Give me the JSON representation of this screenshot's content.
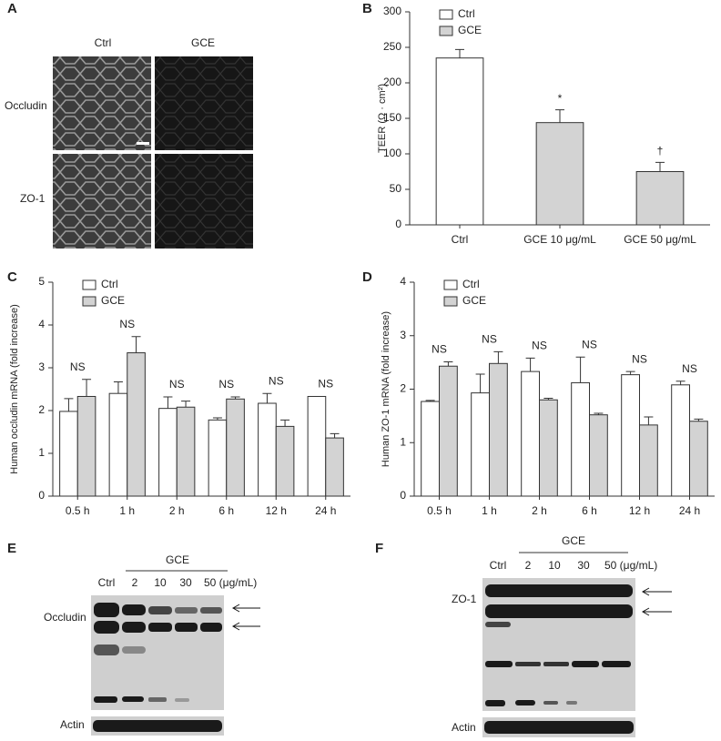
{
  "panel_labels": [
    "A",
    "B",
    "C",
    "D",
    "E",
    "F"
  ],
  "figure_a": {
    "columns": [
      "Ctrl",
      "GCE"
    ],
    "rows": [
      "Occludin",
      "ZO-1"
    ]
  },
  "blot_e": {
    "group": "GCE",
    "lanes": [
      "Ctrl",
      "2",
      "10",
      "30",
      "50 (μg/mL)"
    ],
    "bands": [
      "Occludin",
      "Actin"
    ]
  },
  "blot_f": {
    "group": "GCE",
    "lanes": [
      "Ctrl",
      "2",
      "10",
      "30",
      "50 (μg/mL)"
    ],
    "bands": [
      "ZO-1",
      "Actin"
    ]
  },
  "chart_data": [
    {
      "type": "bar",
      "y_label": "TEER (Ω · cm²)",
      "categories": [
        "Ctrl",
        "GCE 10 μg/mL",
        "GCE 50 μg/mL"
      ],
      "series": [
        {
          "name": "Ctrl",
          "color": "#ffffff",
          "values": [
            235,
            null,
            null
          ],
          "errors": [
            12,
            null,
            null
          ]
        },
        {
          "name": "GCE",
          "color": "#d3d3d3",
          "values": [
            null,
            144,
            75
          ],
          "errors": [
            null,
            18,
            13
          ],
          "annotations": [
            null,
            "*",
            "†"
          ]
        }
      ],
      "ylim": [
        0,
        300
      ],
      "yticks": [
        0,
        50,
        100,
        150,
        200,
        250,
        300
      ]
    },
    {
      "type": "bar",
      "y_label": "Human occludin mRNA (fold increase)",
      "categories": [
        "0.5 h",
        "1 h",
        "2 h",
        "6 h",
        "12 h",
        "24 h"
      ],
      "series": [
        {
          "name": "Ctrl",
          "color": "#ffffff",
          "values": [
            1.98,
            2.4,
            2.05,
            1.78,
            2.17,
            2.33
          ],
          "errors": [
            0.3,
            0.27,
            0.27,
            0.05,
            0.23,
            0
          ]
        },
        {
          "name": "GCE",
          "color": "#d3d3d3",
          "values": [
            2.33,
            3.35,
            2.08,
            2.27,
            1.63,
            1.36
          ],
          "errors": [
            0.4,
            0.38,
            0.14,
            0.05,
            0.15,
            0.1
          ]
        }
      ],
      "annotations": [
        "NS",
        "NS",
        "NS",
        "NS",
        "NS",
        "NS"
      ],
      "ylim": [
        0,
        5
      ],
      "yticks": [
        0,
        1,
        2,
        3,
        4,
        5
      ]
    },
    {
      "type": "bar",
      "y_label": "Human ZO-1 mRNA (fold increase)",
      "categories": [
        "0.5 h",
        "1 h",
        "2 h",
        "6 h",
        "12 h",
        "24 h"
      ],
      "series": [
        {
          "name": "Ctrl",
          "color": "#ffffff",
          "values": [
            1.77,
            1.93,
            2.33,
            2.12,
            2.27,
            2.08
          ],
          "errors": [
            0.02,
            0.35,
            0.25,
            0.48,
            0.06,
            0.07
          ]
        },
        {
          "name": "GCE",
          "color": "#d3d3d3",
          "values": [
            2.43,
            2.48,
            1.8,
            1.52,
            1.33,
            1.4
          ],
          "errors": [
            0.08,
            0.22,
            0.03,
            0.03,
            0.15,
            0.04
          ]
        }
      ],
      "annotations": [
        "NS",
        "NS",
        "NS",
        "NS",
        "NS",
        "NS"
      ],
      "ylim": [
        0,
        4
      ],
      "yticks": [
        0,
        1,
        2,
        3,
        4
      ]
    }
  ]
}
